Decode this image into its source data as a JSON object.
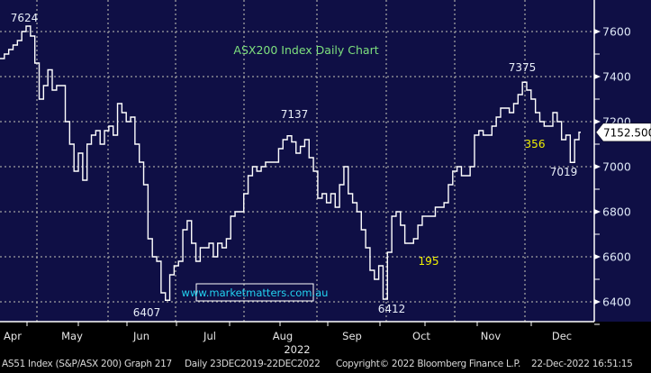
{
  "chart_data": {
    "type": "line",
    "title": "ASX200 Index Daily Chart",
    "xlabel": "2022",
    "ylabel": "",
    "ylim": [
      6320,
      7720
    ],
    "y_ticks": [
      6400,
      6600,
      6800,
      7000,
      7200,
      7400,
      7600
    ],
    "x_tick_labels": [
      "Apr",
      "May",
      "Jun",
      "Jul",
      "Aug",
      "Sep",
      "Oct",
      "Nov",
      "Dec"
    ],
    "grid": true,
    "axis_side": "right",
    "colors": {
      "background": "#0f0f45",
      "line": "#ffffff",
      "title": "#7ee07e",
      "annotation": "#e8eef8",
      "highlight": "#f0f000",
      "watermark": "#22d3f0"
    },
    "series": [
      {
        "values": [
          7480,
          7500,
          7520,
          7540,
          7560,
          7600,
          7624,
          7580,
          7460,
          7300,
          7360,
          7430,
          7340,
          7360,
          7360,
          7200,
          7100,
          6980,
          7060,
          6940,
          7100,
          7140,
          7160,
          7100,
          7160,
          7180,
          7140,
          7280,
          7240,
          7200,
          7220,
          7100,
          7020,
          6920,
          6680,
          6600,
          6580,
          6440,
          6407,
          6520,
          6560,
          6580,
          6720,
          6760,
          6660,
          6580,
          6640,
          6640,
          6660,
          6600,
          6660,
          6640,
          6680,
          6780,
          6800,
          6800,
          6880,
          6960,
          7000,
          6980,
          7000,
          7020,
          7020,
          7020,
          7080,
          7120,
          7137,
          7110,
          7060,
          7090,
          7120,
          7040,
          6980,
          6860,
          6880,
          6840,
          6880,
          6820,
          6920,
          7000,
          6880,
          6840,
          6800,
          6720,
          6640,
          6540,
          6500,
          6560,
          6412,
          6620,
          6780,
          6800,
          6740,
          6660,
          6660,
          6680,
          6740,
          6780,
          6780,
          6780,
          6820,
          6820,
          6840,
          6920,
          6980,
          7000,
          6960,
          6960,
          7000,
          7140,
          7160,
          7140,
          7140,
          7180,
          7220,
          7260,
          7260,
          7240,
          7280,
          7320,
          7375,
          7340,
          7300,
          7240,
          7200,
          7180,
          7180,
          7240,
          7200,
          7120,
          7140,
          7019,
          7120,
          7152.5
        ]
      }
    ],
    "last_price": "7152.500",
    "annotations": [
      {
        "text": "7624",
        "style": "annotation"
      },
      {
        "text": "6407",
        "style": "annotation"
      },
      {
        "text": "7137",
        "style": "annotation"
      },
      {
        "text": "6412",
        "style": "annotation"
      },
      {
        "text": "7375",
        "style": "annotation"
      },
      {
        "text": "7019",
        "style": "annotation"
      },
      {
        "text": "195",
        "style": "highlight"
      },
      {
        "text": "356",
        "style": "highlight"
      }
    ],
    "watermark": "www.marketmatters.com.au"
  },
  "footer": {
    "security": "AS51 Index (S&P/ASX 200) Graph 217",
    "range": "Daily 23DEC2019-22DEC2022",
    "copyright": "Copyright© 2022 Bloomberg Finance L.P.",
    "timestamp": "22-Dec-2022 16:51:15"
  }
}
